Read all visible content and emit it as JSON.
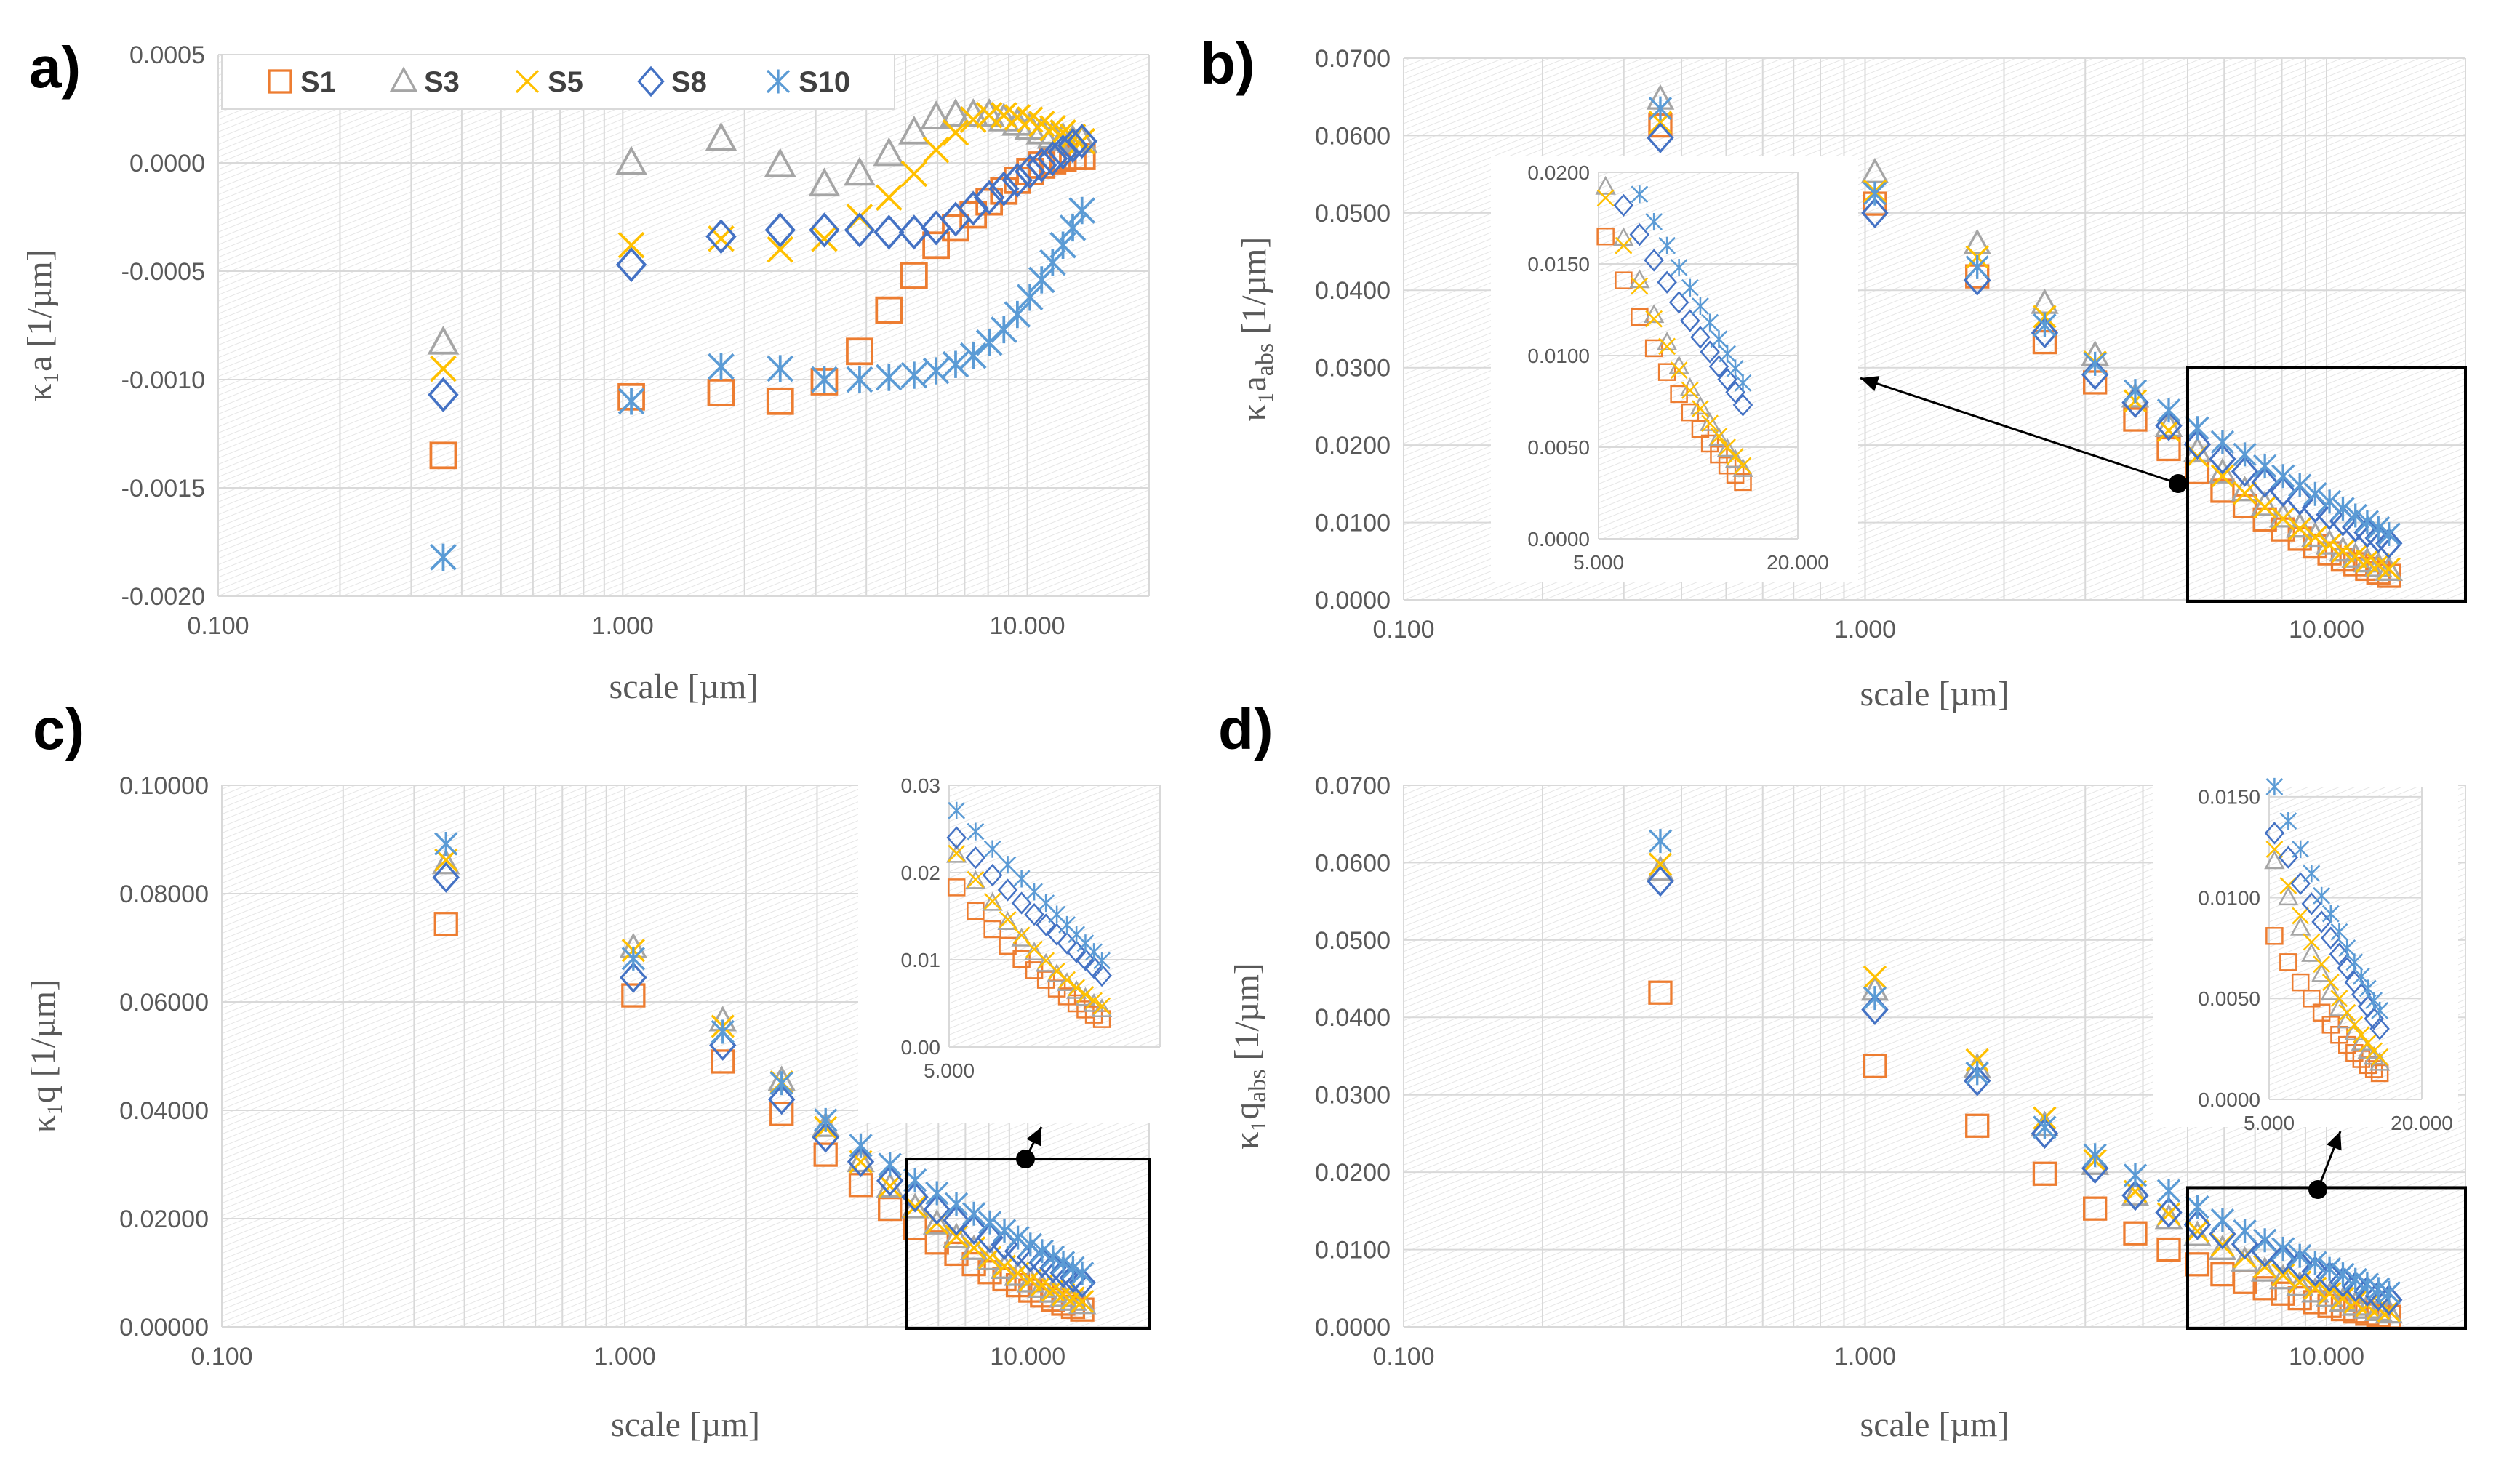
{
  "series_style": {
    "S1": {
      "marker": "square",
      "color": "#ED7D31"
    },
    "S3": {
      "marker": "triangle",
      "color": "#A5A5A5"
    },
    "S5": {
      "marker": "x",
      "color": "#FFC000"
    },
    "S8": {
      "marker": "diamond",
      "color": "#4472C4"
    },
    "S10": {
      "marker": "star",
      "color": "#5B9BD5"
    }
  },
  "x_common": [
    0.36,
    1.05,
    1.75,
    2.45,
    3.15,
    3.85,
    4.55,
    5.25,
    5.95,
    6.65,
    7.35,
    8.05,
    8.75,
    9.45,
    10.15,
    10.85,
    11.55,
    12.25,
    12.95,
    13.65
  ],
  "chart_data": [
    {
      "id": "a",
      "type": "scatter",
      "panel_label": "a)",
      "xscale": "log",
      "xlim": [
        0.1,
        20
      ],
      "xticks": [
        0.1,
        1,
        10
      ],
      "xtick_labels": [
        "0.100",
        "1.000",
        "10.000"
      ],
      "ylim": [
        -0.002,
        0.0005
      ],
      "yticks": [
        -0.002,
        -0.0015,
        -0.001,
        -0.0005,
        0,
        0.0005
      ],
      "ytick_labels": [
        "-0.0020",
        "-0.0015",
        "-0.0010",
        "-0.0005",
        "0.0000",
        "0.0005"
      ],
      "xlabel": "scale [µm]",
      "ylabel": "κ₁a [1/µm]",
      "legend_position": "top",
      "series": [
        {
          "name": "S1",
          "values": [
            -0.00135,
            -0.00108,
            -0.00106,
            -0.0011,
            -0.00101,
            -0.00087,
            -0.00068,
            -0.00052,
            -0.00038,
            -0.0003,
            -0.00024,
            -0.00018,
            -0.00013,
            -8e-05,
            -4e-05,
            -1e-05,
            1e-05,
            2e-05,
            3e-05,
            3e-05
          ]
        },
        {
          "name": "S3",
          "values": [
            -0.00083,
            0.0,
            0.00011,
            -1e-05,
            -0.0001,
            -5e-05,
            4e-05,
            0.00014,
            0.00021,
            0.00022,
            0.00022,
            0.00022,
            0.0002,
            0.00018,
            0.00016,
            0.00014,
            0.00012,
            0.00011,
            0.0001,
            0.0001
          ]
        },
        {
          "name": "S5",
          "values": [
            -0.00095,
            -0.00038,
            -0.00035,
            -0.0004,
            -0.00035,
            -0.00025,
            -0.00016,
            -5e-05,
            6e-05,
            0.00014,
            0.0002,
            0.00022,
            0.00022,
            0.00021,
            0.0002,
            0.00018,
            0.00016,
            0.00014,
            0.00012,
            0.0001
          ]
        },
        {
          "name": "S8",
          "values": [
            -0.00107,
            -0.00047,
            -0.00034,
            -0.00031,
            -0.00031,
            -0.00031,
            -0.00032,
            -0.00032,
            -0.0003,
            -0.00026,
            -0.00021,
            -0.00016,
            -0.00012,
            -8e-05,
            -4e-05,
            -1e-05,
            2e-05,
            5e-05,
            8e-05,
            0.0001
          ]
        },
        {
          "name": "S10",
          "values": [
            -0.00182,
            -0.0011,
            -0.00094,
            -0.00095,
            -0.001,
            -0.001,
            -0.00099,
            -0.00098,
            -0.00096,
            -0.00093,
            -0.00089,
            -0.00083,
            -0.00077,
            -0.0007,
            -0.00062,
            -0.00054,
            -0.00046,
            -0.00038,
            -0.0003,
            -0.00022
          ]
        }
      ]
    },
    {
      "id": "b",
      "type": "scatter",
      "panel_label": "b)",
      "xscale": "log",
      "xlim": [
        0.1,
        20
      ],
      "xticks": [
        0.1,
        1,
        10
      ],
      "xtick_labels": [
        "0.100",
        "1.000",
        "10.000"
      ],
      "ylim": [
        0,
        0.07
      ],
      "yticks": [
        0,
        0.01,
        0.02,
        0.03,
        0.04,
        0.05,
        0.06,
        0.07
      ],
      "ytick_labels": [
        "0.0000",
        "0.0100",
        "0.0200",
        "0.0300",
        "0.0400",
        "0.0500",
        "0.0600",
        "0.0700"
      ],
      "xlabel": "scale [µm]",
      "ylabel": "κ₁a_abs [1/µm]",
      "series": [
        {
          "name": "S1",
          "values": [
            0.0613,
            0.0512,
            0.0418,
            0.0333,
            0.0281,
            0.0233,
            0.0195,
            0.0165,
            0.0141,
            0.0121,
            0.0104,
            0.0091,
            0.0079,
            0.0069,
            0.006,
            0.0052,
            0.0046,
            0.004,
            0.0035,
            0.0031
          ]
        },
        {
          "name": "S3",
          "values": [
            0.0647,
            0.0552,
            0.046,
            0.0383,
            0.0316,
            0.0262,
            0.0224,
            0.0192,
            0.0164,
            0.0141,
            0.0122,
            0.0107,
            0.0094,
            0.0082,
            0.0072,
            0.0063,
            0.0055,
            0.0049,
            0.0043,
            0.0038
          ]
        },
        {
          "name": "S5",
          "values": [
            0.0617,
            0.0528,
            0.0443,
            0.0366,
            0.0307,
            0.0257,
            0.0219,
            0.0186,
            0.016,
            0.0138,
            0.012,
            0.0105,
            0.0092,
            0.0081,
            0.0071,
            0.0063,
            0.0056,
            0.005,
            0.0045,
            0.004
          ]
        },
        {
          "name": "S8",
          "values": [
            0.0597,
            0.05,
            0.0413,
            0.0345,
            0.0291,
            0.0255,
            0.0225,
            0.0201,
            0.0182,
            0.0166,
            0.0152,
            0.014,
            0.0129,
            0.0119,
            0.011,
            0.0102,
            0.0094,
            0.0087,
            0.008,
            0.0073
          ]
        },
        {
          "name": "S10",
          "values": [
            0.0635,
            0.0525,
            0.043,
            0.0355,
            0.0305,
            0.027,
            0.0245,
            0.0222,
            0.0204,
            0.0188,
            0.0173,
            0.016,
            0.0148,
            0.0137,
            0.0127,
            0.0118,
            0.0109,
            0.0101,
            0.0093,
            0.0085
          ]
        }
      ]
    },
    {
      "id": "b-inset",
      "type": "scatter",
      "xscale": "log",
      "xlim": [
        5,
        20
      ],
      "xticks": [
        5,
        20
      ],
      "xtick_labels": [
        "5.000",
        "20.000"
      ],
      "ylim": [
        0,
        0.02
      ],
      "yticks": [
        0,
        0.005,
        0.01,
        0.015,
        0.02
      ],
      "ytick_labels": [
        "0.0000",
        "0.0050",
        "0.0100",
        "0.0150",
        "0.0200"
      ],
      "series_ref": "b",
      "x_from": 5
    },
    {
      "id": "c",
      "type": "scatter",
      "panel_label": "c)",
      "xscale": "log",
      "xlim": [
        0.1,
        20
      ],
      "xticks": [
        0.1,
        1,
        10
      ],
      "xtick_labels": [
        "0.100",
        "1.000",
        "10.000"
      ],
      "ylim": [
        0,
        0.1
      ],
      "yticks": [
        0,
        0.02,
        0.04,
        0.06,
        0.08,
        0.1
      ],
      "ytick_labels": [
        "0.00000",
        "0.02000",
        "0.04000",
        "0.06000",
        "0.08000",
        "0.10000"
      ],
      "xlabel": "scale [µm]",
      "ylabel": "κ₁q [1/µm]",
      "series": [
        {
          "name": "S1",
          "values": [
            0.0744,
            0.0612,
            0.049,
            0.0393,
            0.0318,
            0.0262,
            0.0218,
            0.0183,
            0.0156,
            0.0135,
            0.0116,
            0.0101,
            0.0088,
            0.0077,
            0.0067,
            0.0058,
            0.005,
            0.0043,
            0.0037,
            0.0032
          ]
        },
        {
          "name": "S3",
          "values": [
            0.0855,
            0.07,
            0.0565,
            0.0455,
            0.037,
            0.0305,
            0.0258,
            0.022,
            0.019,
            0.0165,
            0.0143,
            0.0124,
            0.0108,
            0.0095,
            0.0083,
            0.0073,
            0.0064,
            0.0056,
            0.0049,
            0.0043
          ]
        },
        {
          "name": "S5",
          "values": [
            0.0862,
            0.0695,
            0.0555,
            0.0452,
            0.0368,
            0.0305,
            0.026,
            0.0222,
            0.0192,
            0.0167,
            0.0146,
            0.0128,
            0.0112,
            0.0099,
            0.0087,
            0.0077,
            0.0068,
            0.006,
            0.0053,
            0.0047
          ]
        },
        {
          "name": "S8",
          "values": [
            0.083,
            0.0645,
            0.052,
            0.042,
            0.035,
            0.0305,
            0.027,
            0.024,
            0.0217,
            0.0197,
            0.018,
            0.0165,
            0.0152,
            0.014,
            0.0129,
            0.0119,
            0.0109,
            0.01,
            0.0091,
            0.0082
          ]
        },
        {
          "name": "S10",
          "values": [
            0.0892,
            0.068,
            0.0545,
            0.045,
            0.0382,
            0.0335,
            0.03,
            0.0271,
            0.0247,
            0.0227,
            0.0209,
            0.0193,
            0.0178,
            0.0165,
            0.0152,
            0.014,
            0.0129,
            0.0119,
            0.0109,
            0.0099
          ]
        }
      ]
    },
    {
      "id": "c-inset",
      "type": "scatter",
      "xscale": "log",
      "xlim": [
        5,
        20
      ],
      "xticks": [
        5
      ],
      "xtick_labels": [
        "5.000"
      ],
      "ylim": [
        0,
        0.03
      ],
      "yticks": [
        0,
        0.01,
        0.02,
        0.03
      ],
      "ytick_labels": [
        "0.00",
        "0.01",
        "0.02",
        "0.03"
      ],
      "series_ref": "c",
      "x_from": 5
    },
    {
      "id": "d",
      "type": "scatter",
      "panel_label": "d)",
      "xscale": "log",
      "xlim": [
        0.1,
        20
      ],
      "xticks": [
        0.1,
        1,
        10
      ],
      "xtick_labels": [
        "0.100",
        "1.000",
        "10.000"
      ],
      "ylim": [
        0,
        0.07
      ],
      "yticks": [
        0,
        0.01,
        0.02,
        0.03,
        0.04,
        0.05,
        0.06,
        0.07
      ],
      "ytick_labels": [
        "0.0000",
        "0.0100",
        "0.0200",
        "0.0300",
        "0.0400",
        "0.0500",
        "0.0600",
        "0.0700"
      ],
      "xlabel": "scale [µm]",
      "ylabel": "κ₁q_abs [1/µm]",
      "series": [
        {
          "name": "S1",
          "values": [
            0.0432,
            0.0337,
            0.026,
            0.0198,
            0.0153,
            0.0121,
            0.01,
            0.0081,
            0.0068,
            0.0058,
            0.005,
            0.0043,
            0.0037,
            0.0032,
            0.0027,
            0.0023,
            0.002,
            0.0017,
            0.0015,
            0.0013
          ]
        },
        {
          "name": "S3",
          "values": [
            0.059,
            0.0435,
            0.0335,
            0.026,
            0.021,
            0.017,
            0.014,
            0.0118,
            0.01,
            0.0085,
            0.0072,
            0.0062,
            0.0053,
            0.0045,
            0.0039,
            0.0033,
            0.0028,
            0.0024,
            0.0021,
            0.0018
          ]
        },
        {
          "name": "S5",
          "values": [
            0.0598,
            0.0452,
            0.0345,
            0.027,
            0.0215,
            0.0175,
            0.0146,
            0.0124,
            0.0106,
            0.0091,
            0.0078,
            0.0067,
            0.0058,
            0.005,
            0.0043,
            0.0037,
            0.0032,
            0.0028,
            0.0024,
            0.0021
          ]
        },
        {
          "name": "S8",
          "values": [
            0.0576,
            0.041,
            0.0318,
            0.025,
            0.0205,
            0.017,
            0.0148,
            0.0132,
            0.012,
            0.0107,
            0.0097,
            0.0088,
            0.008,
            0.0072,
            0.0065,
            0.0058,
            0.0052,
            0.0046,
            0.004,
            0.0035
          ]
        },
        {
          "name": "S10",
          "values": [
            0.0628,
            0.0425,
            0.0328,
            0.0258,
            0.0222,
            0.0196,
            0.0176,
            0.0155,
            0.0138,
            0.0124,
            0.0112,
            0.0101,
            0.0092,
            0.0083,
            0.0075,
            0.0068,
            0.0061,
            0.0055,
            0.0049,
            0.0044
          ]
        }
      ]
    },
    {
      "id": "d-inset",
      "type": "scatter",
      "xscale": "log",
      "xlim": [
        5,
        20
      ],
      "xticks": [
        5,
        20
      ],
      "xtick_labels": [
        "5.000",
        "20.000"
      ],
      "ylim": [
        0,
        0.0155
      ],
      "yticks": [
        0,
        0.005,
        0.01,
        0.015
      ],
      "ytick_labels": [
        "0.0000",
        "0.0050",
        "0.0100",
        "0.0150"
      ],
      "series_ref": "d",
      "x_from": 5
    }
  ]
}
